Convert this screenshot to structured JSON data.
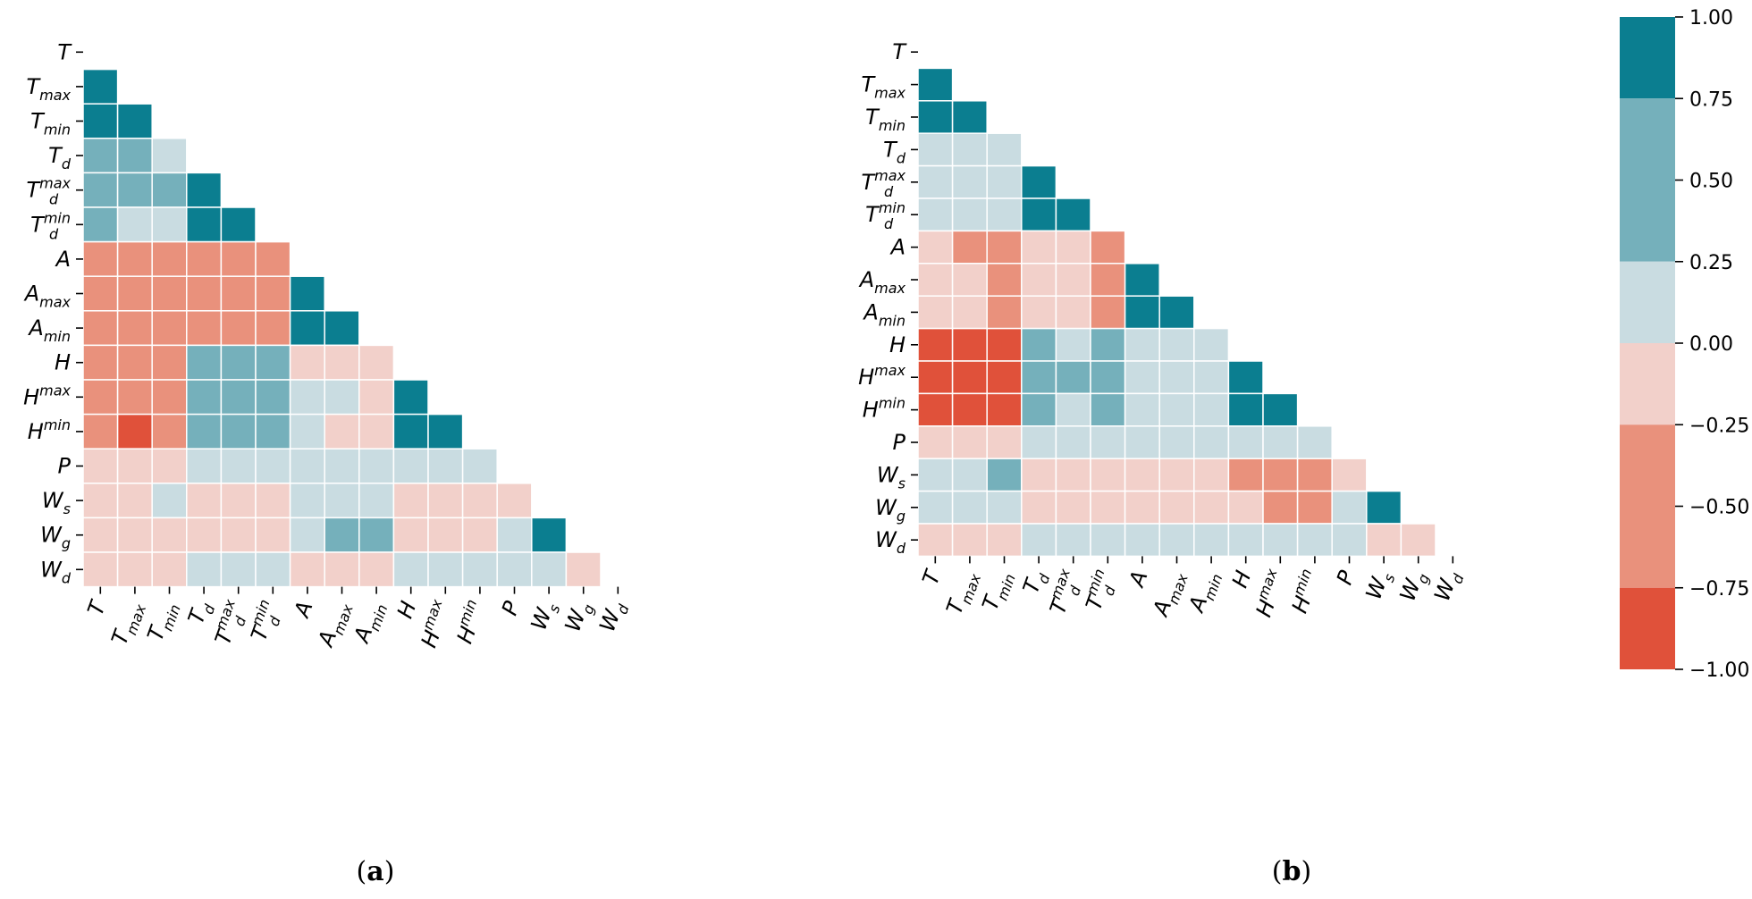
{
  "chart_data": [
    {
      "type": "heatmap",
      "panel": "a",
      "caption": "(a)",
      "caption_letter": "a",
      "variables": [
        {
          "base": "T",
          "sub": "",
          "sup": ""
        },
        {
          "base": "T",
          "sub": "max",
          "sup": ""
        },
        {
          "base": "T",
          "sub": "min",
          "sup": ""
        },
        {
          "base": "T",
          "sub": "d",
          "sup": ""
        },
        {
          "base": "T",
          "sub": "d",
          "sup": "max"
        },
        {
          "base": "T",
          "sub": "d",
          "sup": "min"
        },
        {
          "base": "A",
          "sub": "",
          "sup": ""
        },
        {
          "base": "A",
          "sub": "max",
          "sup": ""
        },
        {
          "base": "A",
          "sub": "min",
          "sup": ""
        },
        {
          "base": "H",
          "sub": "",
          "sup": ""
        },
        {
          "base": "H",
          "sub": "",
          "sup": "max"
        },
        {
          "base": "H",
          "sub": "",
          "sup": "min"
        },
        {
          "base": "P",
          "sub": "",
          "sup": ""
        },
        {
          "base": "W",
          "sub": "s",
          "sup": ""
        },
        {
          "base": "W",
          "sub": "g",
          "sup": ""
        },
        {
          "base": "W",
          "sub": "d",
          "sup": ""
        }
      ],
      "mask": "lower-triangle (diagonal hidden)",
      "values": [
        [],
        [
          0.9
        ],
        [
          0.9,
          0.9
        ],
        [
          0.4,
          0.4,
          0.1
        ],
        [
          0.4,
          0.4,
          0.4,
          0.9
        ],
        [
          0.4,
          0.1,
          0.1,
          0.9,
          0.9
        ],
        [
          -0.4,
          -0.4,
          -0.4,
          -0.4,
          -0.4,
          -0.4
        ],
        [
          -0.4,
          -0.4,
          -0.4,
          -0.4,
          -0.4,
          -0.4,
          0.9
        ],
        [
          -0.4,
          -0.4,
          -0.4,
          -0.4,
          -0.4,
          -0.4,
          0.9,
          0.9
        ],
        [
          -0.4,
          -0.4,
          -0.4,
          0.4,
          0.4,
          0.4,
          -0.1,
          -0.1,
          -0.1
        ],
        [
          -0.4,
          -0.4,
          -0.4,
          0.4,
          0.4,
          0.4,
          0.1,
          0.1,
          -0.1,
          0.9
        ],
        [
          -0.4,
          -0.9,
          -0.4,
          0.4,
          0.4,
          0.4,
          0.1,
          -0.1,
          -0.1,
          0.9,
          0.9
        ],
        [
          -0.1,
          -0.1,
          -0.1,
          0.1,
          0.1,
          0.1,
          0.1,
          0.1,
          0.1,
          0.1,
          0.1,
          0.1
        ],
        [
          -0.1,
          -0.1,
          0.1,
          -0.1,
          -0.1,
          -0.1,
          0.1,
          0.1,
          0.1,
          -0.1,
          -0.1,
          -0.1,
          -0.1
        ],
        [
          -0.1,
          -0.1,
          -0.1,
          -0.1,
          -0.1,
          -0.1,
          0.1,
          0.4,
          0.4,
          -0.1,
          -0.1,
          -0.1,
          0.1,
          0.9
        ],
        [
          -0.1,
          -0.1,
          -0.1,
          0.1,
          0.1,
          0.1,
          -0.1,
          -0.1,
          -0.1,
          0.1,
          0.1,
          0.1,
          0.1,
          0.1,
          -0.1
        ]
      ]
    },
    {
      "type": "heatmap",
      "panel": "b",
      "caption": "(b)",
      "caption_letter": "b",
      "variables": [
        {
          "base": "T",
          "sub": "",
          "sup": ""
        },
        {
          "base": "T",
          "sub": "max",
          "sup": ""
        },
        {
          "base": "T",
          "sub": "min",
          "sup": ""
        },
        {
          "base": "T",
          "sub": "d",
          "sup": ""
        },
        {
          "base": "T",
          "sub": "d",
          "sup": "max"
        },
        {
          "base": "T",
          "sub": "d",
          "sup": "min"
        },
        {
          "base": "A",
          "sub": "",
          "sup": ""
        },
        {
          "base": "A",
          "sub": "max",
          "sup": ""
        },
        {
          "base": "A",
          "sub": "min",
          "sup": ""
        },
        {
          "base": "H",
          "sub": "",
          "sup": ""
        },
        {
          "base": "H",
          "sub": "",
          "sup": "max"
        },
        {
          "base": "H",
          "sub": "",
          "sup": "min"
        },
        {
          "base": "P",
          "sub": "",
          "sup": ""
        },
        {
          "base": "W",
          "sub": "s",
          "sup": ""
        },
        {
          "base": "W",
          "sub": "g",
          "sup": ""
        },
        {
          "base": "W",
          "sub": "d",
          "sup": ""
        }
      ],
      "mask": "lower-triangle (diagonal hidden)",
      "values": [
        [],
        [
          0.9
        ],
        [
          0.9,
          0.9
        ],
        [
          0.1,
          0.1,
          0.1
        ],
        [
          0.1,
          0.1,
          0.1,
          0.9
        ],
        [
          0.1,
          0.1,
          0.1,
          0.9,
          0.9
        ],
        [
          -0.1,
          -0.4,
          -0.4,
          -0.1,
          -0.1,
          -0.4
        ],
        [
          -0.1,
          -0.1,
          -0.4,
          -0.1,
          -0.1,
          -0.4,
          0.9
        ],
        [
          -0.1,
          -0.1,
          -0.4,
          -0.1,
          -0.1,
          -0.4,
          0.9,
          0.9
        ],
        [
          -0.9,
          -0.9,
          -0.9,
          0.4,
          0.1,
          0.4,
          0.1,
          0.1,
          0.1
        ],
        [
          -0.9,
          -0.9,
          -0.9,
          0.4,
          0.4,
          0.4,
          0.1,
          0.1,
          0.1,
          0.9
        ],
        [
          -0.9,
          -0.9,
          -0.9,
          0.4,
          0.1,
          0.4,
          0.1,
          0.1,
          0.1,
          0.9,
          0.9
        ],
        [
          -0.1,
          -0.1,
          -0.1,
          0.1,
          0.1,
          0.1,
          0.1,
          0.1,
          0.1,
          0.1,
          0.1,
          0.1
        ],
        [
          0.1,
          0.1,
          0.4,
          -0.1,
          -0.1,
          -0.1,
          -0.1,
          -0.1,
          -0.1,
          -0.4,
          -0.4,
          -0.4,
          -0.1
        ],
        [
          0.1,
          0.1,
          0.1,
          -0.1,
          -0.1,
          -0.1,
          -0.1,
          -0.1,
          -0.1,
          -0.1,
          -0.4,
          -0.4,
          0.1,
          0.9
        ],
        [
          -0.1,
          -0.1,
          -0.1,
          0.1,
          0.1,
          0.1,
          0.1,
          0.1,
          0.1,
          0.1,
          0.1,
          0.1,
          0.1,
          -0.1,
          -0.1
        ]
      ]
    }
  ],
  "colorbar": {
    "range": [
      -1.0,
      1.0
    ],
    "bins": [
      {
        "from": 0.75,
        "to": 1.0,
        "color": "#0b7e90"
      },
      {
        "from": 0.25,
        "to": 0.75,
        "color": "#75b0bb"
      },
      {
        "from": 0.0,
        "to": 0.25,
        "color": "#c9dce1"
      },
      {
        "from": -0.25,
        "to": 0.0,
        "color": "#f2d0ca"
      },
      {
        "from": -0.75,
        "to": -0.25,
        "color": "#e9917c"
      },
      {
        "from": -1.0,
        "to": -0.75,
        "color": "#e0513a"
      }
    ],
    "tick_labels": [
      "1.00",
      "0.75",
      "0.50",
      "0.25",
      "0.00",
      "−0.25",
      "−0.50",
      "−0.75",
      "−1.00"
    ],
    "tick_values": [
      1.0,
      0.75,
      0.5,
      0.25,
      0.0,
      -0.25,
      -0.5,
      -0.75,
      -1.0
    ]
  }
}
